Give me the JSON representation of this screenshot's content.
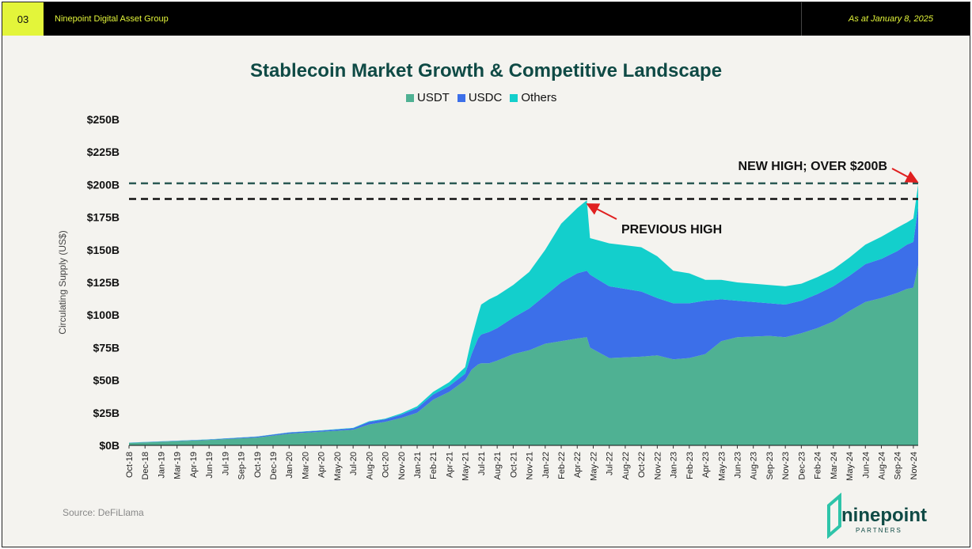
{
  "header": {
    "page_number": "03",
    "organization": "Ninepoint Digital Asset Group",
    "as_at": "As at January 8, 2025"
  },
  "colors": {
    "usdt": "#4fb193",
    "usdc": "#3c6fe9",
    "others": "#13cfcc",
    "title": "#0f4a45",
    "accent": "#e3f53a"
  },
  "footer": {
    "source": "Source: DeFiLlama",
    "logo_word": "ninepoint",
    "logo_sub": "PARTNERS"
  },
  "chart_data": {
    "type": "area",
    "stacked": true,
    "title": "Stablecoin Market Growth & Competitive Landscape",
    "ylabel": "Circulating Supply (US$)",
    "xlabel": "",
    "ylim": [
      0,
      250
    ],
    "yticks": [
      0,
      25,
      50,
      75,
      100,
      125,
      150,
      175,
      200,
      225,
      250
    ],
    "ytick_labels": [
      "$0B",
      "$25B",
      "$50B",
      "$75B",
      "$100B",
      "$125B",
      "$150B",
      "$175B",
      "$200B",
      "$225B",
      "$250B"
    ],
    "x_tick_labels": [
      "Oct-18",
      "Dec-18",
      "Jan-19",
      "Mar-19",
      "Apr-19",
      "Jun-19",
      "Jul-19",
      "Sep-19",
      "Oct-19",
      "Dec-19",
      "Jan-20",
      "Mar-20",
      "Apr-20",
      "May-20",
      "Jul-20",
      "Aug-20",
      "Oct-20",
      "Nov-20",
      "Jan-21",
      "Feb-21",
      "Apr-21",
      "May-21",
      "Jul-21",
      "Aug-21",
      "Oct-21",
      "Nov-21",
      "Jan-22",
      "Feb-22",
      "Apr-22",
      "May-22",
      "Jul-22",
      "Aug-22",
      "Oct-22",
      "Nov-22",
      "Jan-23",
      "Feb-23",
      "Apr-23",
      "May-23",
      "Jun-23",
      "Aug-23",
      "Sep-23",
      "Nov-23",
      "Dec-23",
      "Feb-24",
      "Mar-24",
      "May-24",
      "Jun-24",
      "Aug-24",
      "Sep-24",
      "Nov-24"
    ],
    "legend": [
      "USDT",
      "USDC",
      "Others"
    ],
    "x": [
      0,
      5,
      8,
      10,
      12,
      14,
      15,
      16,
      17,
      18,
      19,
      20,
      21,
      21.4,
      21.8,
      22,
      22.5,
      23,
      24,
      25,
      26,
      27,
      28,
      28.6,
      28.8,
      30,
      32,
      33,
      34,
      35,
      36,
      37,
      38,
      40,
      41,
      42,
      43,
      44,
      45,
      46,
      47,
      48,
      48.6,
      49,
      49.3
    ],
    "series": [
      {
        "name": "USDT",
        "values": [
          1.8,
          4.2,
          6,
          9,
          10.5,
          12,
          16,
          18,
          21,
          25,
          35,
          41,
          50,
          58,
          62,
          63,
          63,
          65,
          70,
          73,
          78,
          80,
          82,
          83,
          75,
          67,
          68,
          69,
          66,
          67,
          70,
          80,
          83,
          84,
          83,
          86,
          90,
          95,
          103,
          110,
          113,
          117,
          120,
          121,
          138
        ]
      },
      {
        "name": "USDC",
        "values": [
          0.2,
          0.3,
          0.7,
          0.8,
          0.8,
          1.1,
          2,
          2,
          2.5,
          3.5,
          4,
          4.5,
          5,
          12,
          20,
          22,
          24,
          25,
          28,
          32,
          37,
          45,
          50,
          51,
          56,
          55,
          50,
          44,
          43,
          42,
          41,
          32,
          28,
          25,
          25,
          25,
          26,
          27,
          27,
          29,
          30,
          32,
          34,
          35,
          45
        ]
      },
      {
        "name": "Others",
        "values": [
          0.1,
          0.1,
          0.1,
          0.2,
          0.2,
          0.3,
          0.5,
          0.5,
          1,
          1.5,
          2,
          3,
          5,
          12,
          18,
          23,
          25,
          25,
          25,
          28,
          35,
          45,
          50,
          54,
          28,
          33,
          34,
          32,
          25,
          23,
          16,
          15,
          14,
          14,
          14,
          13,
          13,
          13,
          14,
          15,
          17,
          18,
          17,
          18,
          17
        ]
      }
    ],
    "reference_lines": [
      {
        "value": 201,
        "label": "NEW HIGH; OVER $200B",
        "color": "#2c5a55"
      },
      {
        "value": 189,
        "label": "PREVIOUS HIGH",
        "color": "#111111"
      }
    ]
  }
}
